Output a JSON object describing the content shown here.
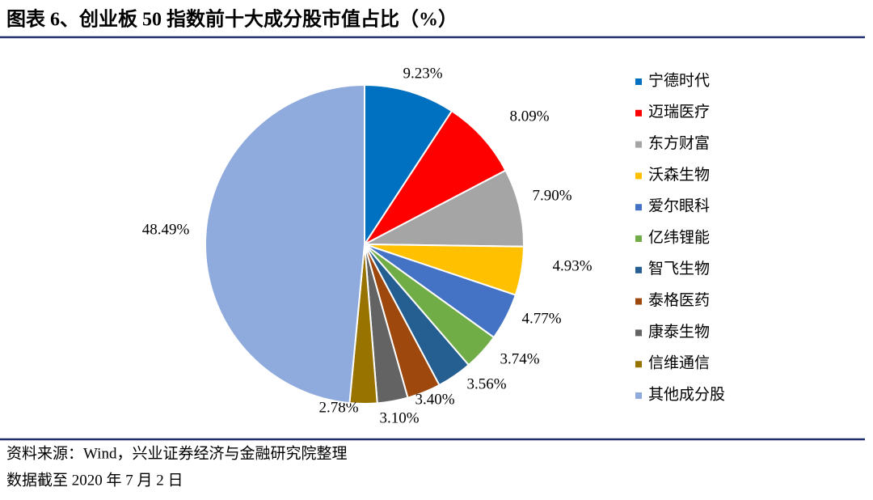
{
  "chart_data": {
    "type": "pie",
    "title": "图表 6、创业板 50 指数前十大成分股市值占比（%）",
    "categories": [
      "宁德时代",
      "迈瑞医疗",
      "东方财富",
      "沃森生物",
      "爱尔眼科",
      "亿纬锂能",
      "智飞生物",
      "泰格医药",
      "康泰生物",
      "信维通信",
      "其他成分股"
    ],
    "values": [
      9.23,
      8.09,
      7.9,
      4.93,
      4.77,
      3.74,
      3.56,
      3.4,
      3.1,
      2.78,
      48.49
    ],
    "value_labels": [
      "9.23%",
      "8.09%",
      "7.90%",
      "4.93%",
      "4.77%",
      "3.74%",
      "3.56%",
      "3.40%",
      "3.10%",
      "2.78%",
      "48.49%"
    ],
    "colors": [
      "#0070C0",
      "#FF0000",
      "#A5A5A5",
      "#FFC000",
      "#4472C4",
      "#70AD47",
      "#255E91",
      "#9E480E",
      "#636363",
      "#997300",
      "#8FAADC"
    ],
    "legend": "right",
    "source": [
      "资料来源：Wind，兴业证券经济与金融研究院整理",
      "数据截至 2020 年 7 月 2 日"
    ]
  }
}
